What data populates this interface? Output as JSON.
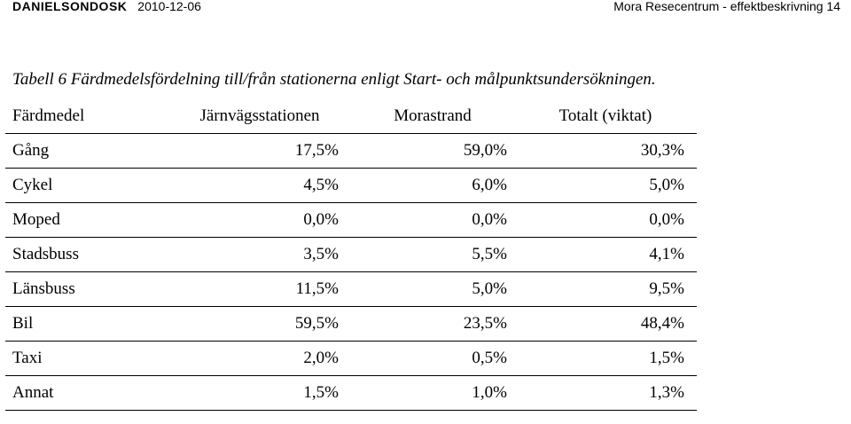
{
  "header": {
    "company": "DANIELSONDOSK",
    "date": "2010-12-06",
    "document": "Mora Resecentrum - effektbeskrivning 14"
  },
  "caption": "Tabell 6 Färdmedelsfördelning till/från stationerna enligt Start- och målpunktsundersökningen.",
  "table": {
    "columns": [
      "Färdmedel",
      "Järnvägsstationen",
      "Morastrand",
      "Totalt (viktat)"
    ],
    "rows": [
      [
        "Gång",
        "17,5%",
        "59,0%",
        "30,3%"
      ],
      [
        "Cykel",
        "4,5%",
        "6,0%",
        "5,0%"
      ],
      [
        "Moped",
        "0,0%",
        "0,0%",
        "0,0%"
      ],
      [
        "Stadsbuss",
        "3,5%",
        "5,5%",
        "4,1%"
      ],
      [
        "Länsbuss",
        "11,5%",
        "5,0%",
        "9,5%"
      ],
      [
        "Bil",
        "59,5%",
        "23,5%",
        "48,4%"
      ],
      [
        "Taxi",
        "2,0%",
        "0,5%",
        "1,5%"
      ],
      [
        "Annat",
        "1,5%",
        "1,0%",
        "1,3%"
      ]
    ]
  }
}
